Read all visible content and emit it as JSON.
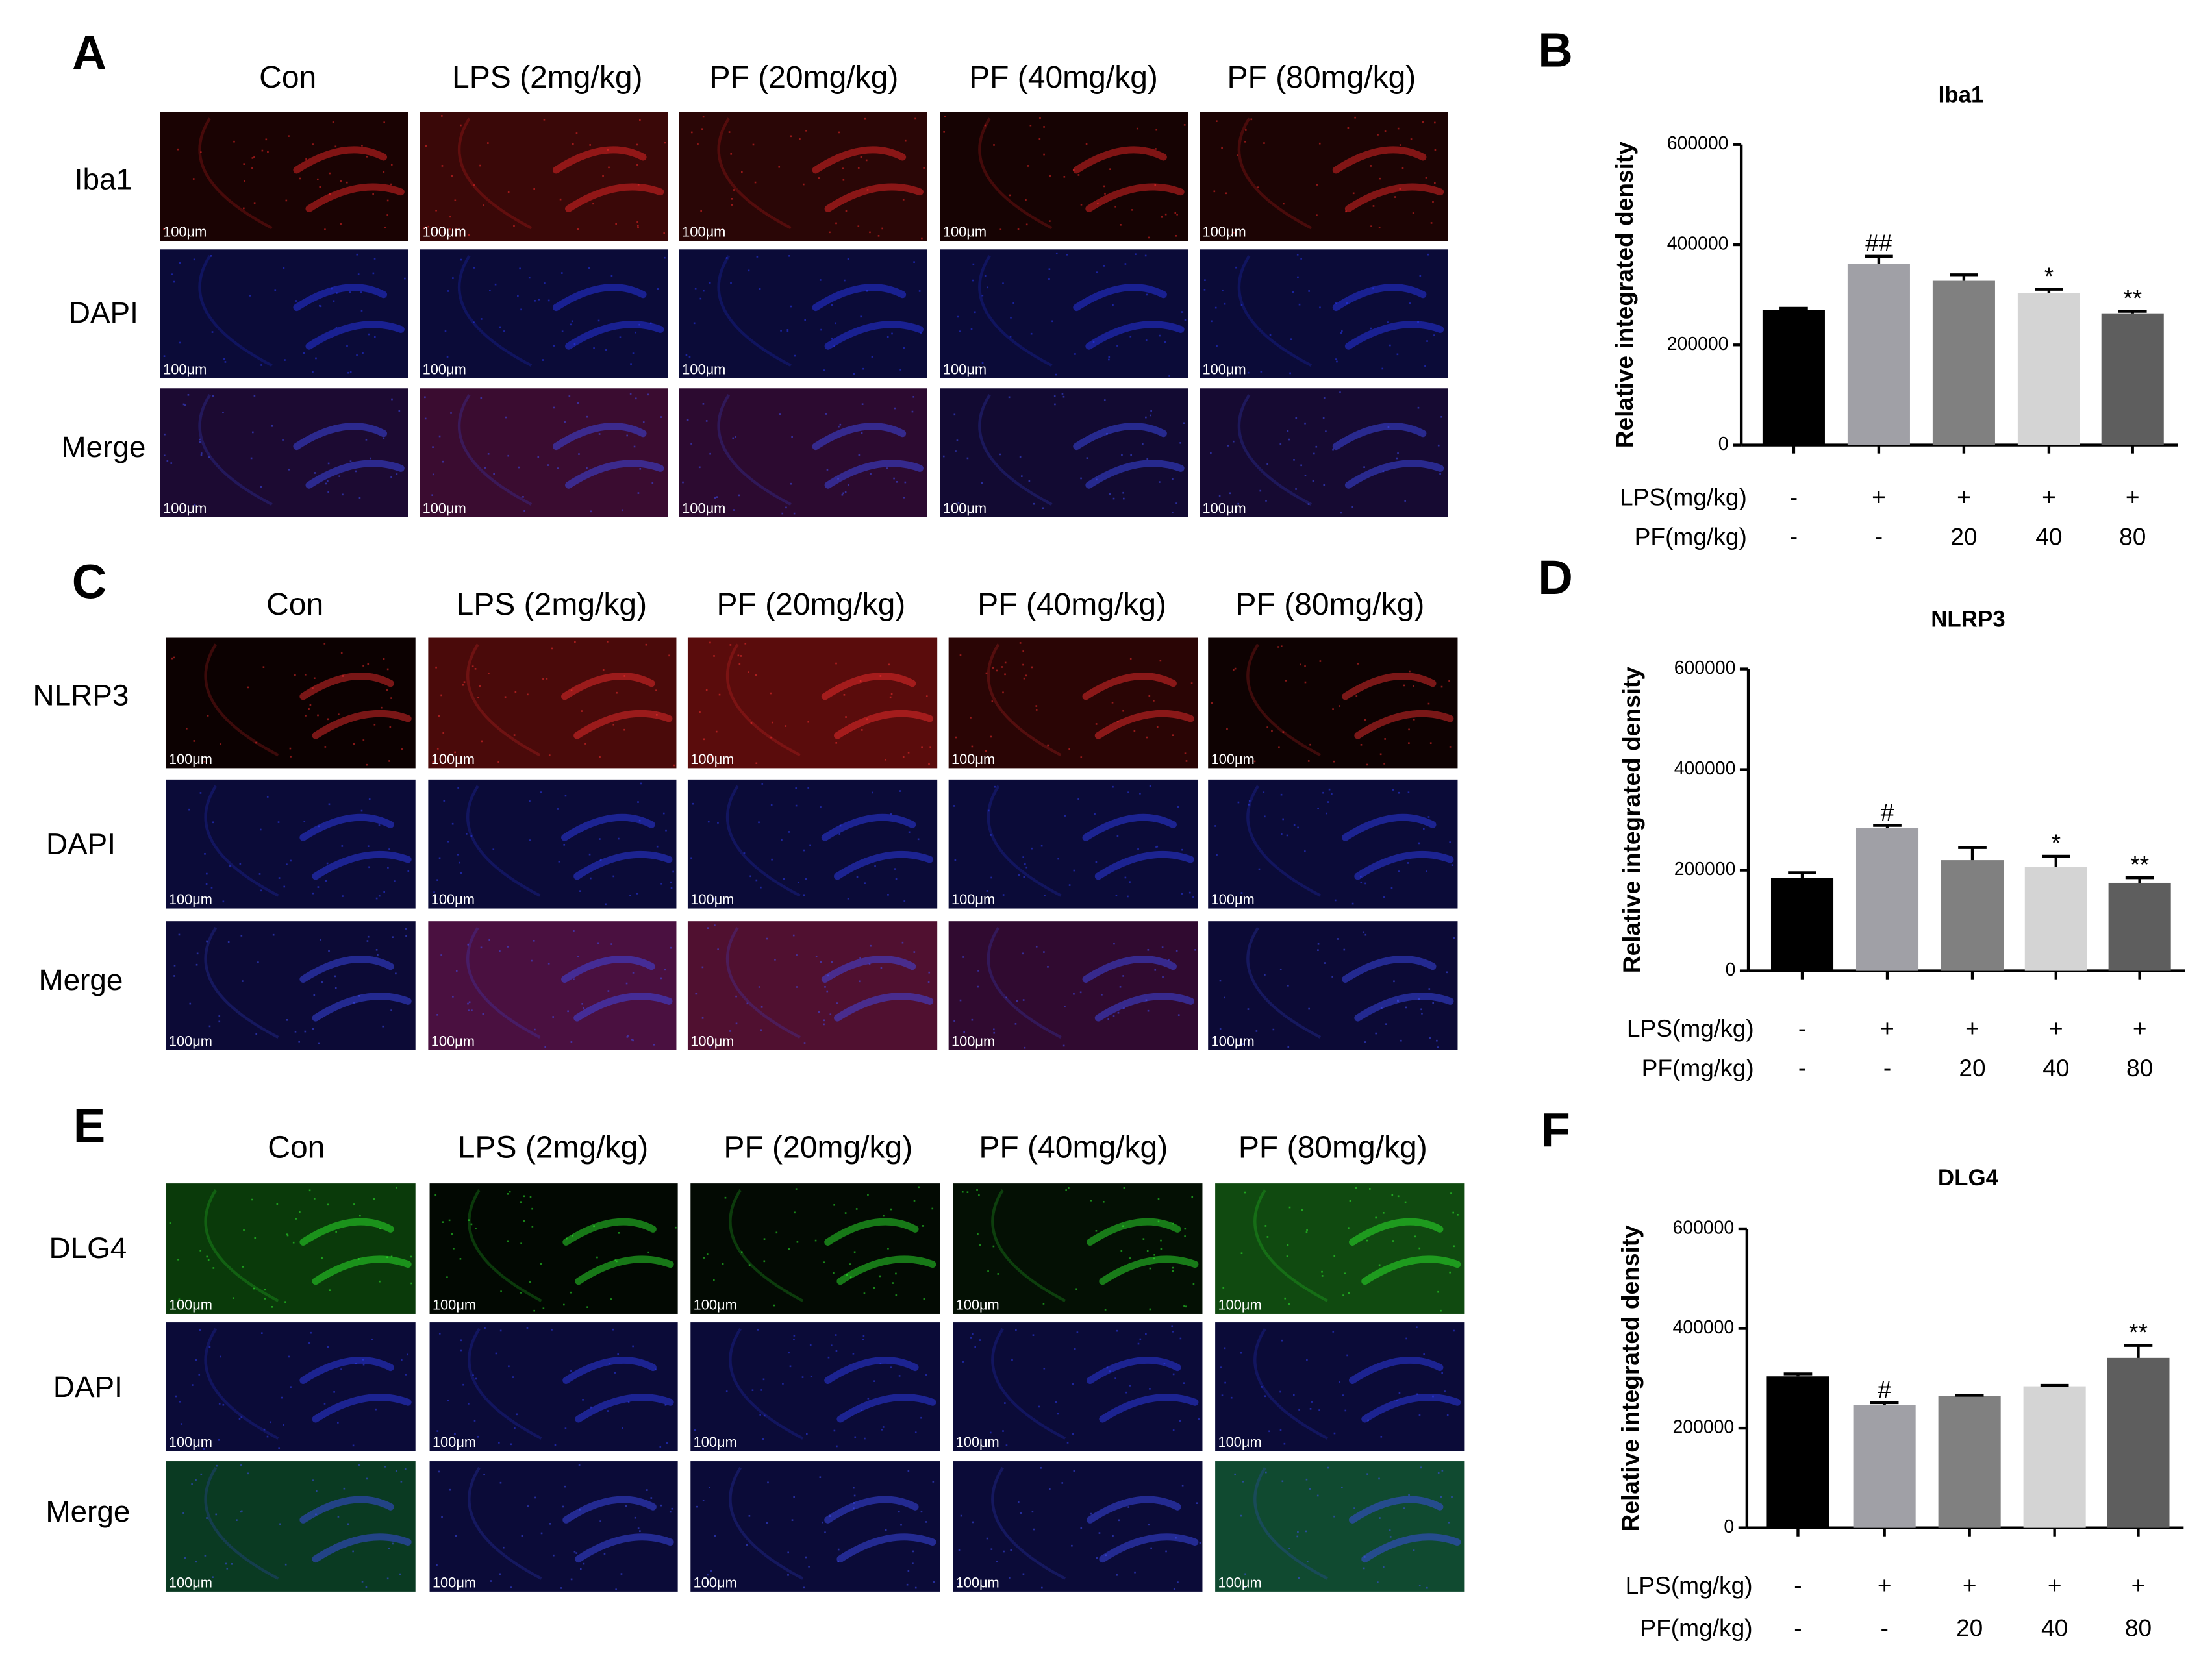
{
  "scale_bar": "100μm",
  "panels": [
    {
      "letter": "A",
      "columns": [
        "Con",
        "LPS (2mg/kg)",
        "PF (20mg/kg)",
        "PF (40mg/kg)",
        "PF (80mg/kg)"
      ],
      "rows": [
        {
          "label": "Iba1",
          "colors": [
            "#1a0303",
            "#3a0808",
            "#2a0606",
            "#160303",
            "#1c0404"
          ],
          "accent": "#ff2a2a"
        },
        {
          "label": "DAPI",
          "colors": [
            "#0b0b38",
            "#0b0b38",
            "#0b0b38",
            "#0b0b38",
            "#0b0b38"
          ],
          "accent": "#2a3aff"
        },
        {
          "label": "Merge",
          "colors": [
            "#1c0a32",
            "#3a0c30",
            "#2c0a30",
            "#120a32",
            "#160a32"
          ],
          "accent": "#4050ff"
        }
      ]
    },
    {
      "letter": "C",
      "columns": [
        "Con",
        "LPS (2mg/kg)",
        "PF (20mg/kg)",
        "PF (40mg/kg)",
        "PF (80mg/kg)"
      ],
      "rows": [
        {
          "label": "NLRP3",
          "colors": [
            "#0c0101",
            "#4a0a0a",
            "#5a0c0c",
            "#2a0505",
            "#0e0202"
          ],
          "accent": "#ff3030"
        },
        {
          "label": "DAPI",
          "colors": [
            "#0b0b38",
            "#0b0b38",
            "#0b0b38",
            "#0b0b38",
            "#0b0b38"
          ],
          "accent": "#3040ff"
        },
        {
          "label": "Merge",
          "colors": [
            "#0c0a36",
            "#4a1040",
            "#501030",
            "#300a30",
            "#0c0a36"
          ],
          "accent": "#4050ff"
        }
      ]
    },
    {
      "letter": "E",
      "columns": [
        "Con",
        "LPS (2mg/kg)",
        "PF (20mg/kg)",
        "PF (40mg/kg)",
        "PF (80mg/kg)"
      ],
      "rows": [
        {
          "label": "DLG4",
          "colors": [
            "#0a3a0a",
            "#020802",
            "#030a03",
            "#041004",
            "#104a10"
          ],
          "accent": "#30ff30"
        },
        {
          "label": "DAPI",
          "colors": [
            "#0b0b38",
            "#0b0b38",
            "#0b0b38",
            "#0b0b38",
            "#0b0b38"
          ],
          "accent": "#3040ff"
        },
        {
          "label": "Merge",
          "colors": [
            "#0a3a22",
            "#0b0b38",
            "#0b0b38",
            "#0b0b38",
            "#104a30"
          ],
          "accent": "#4050ff"
        }
      ]
    }
  ],
  "chart_data": [
    {
      "type": "bar",
      "letter": "B",
      "title": "Iba1",
      "ylabel": "Relative integrated density",
      "values": [
        270000,
        362000,
        328000,
        303000,
        263000
      ],
      "errors": [
        3000,
        15000,
        12000,
        8000,
        4000
      ],
      "colors": [
        "#000000",
        "#a0a0a6",
        "#808080",
        "#d4d4d4",
        "#5e5e5e"
      ],
      "annotations": [
        null,
        "##",
        null,
        "*",
        "**"
      ],
      "ylim": [
        0,
        600000
      ],
      "yticks": [
        0,
        200000,
        400000,
        600000
      ],
      "conditions": [
        {
          "name": "LPS(mg/kg)",
          "values": [
            "-",
            "+",
            "+",
            "+",
            "+"
          ]
        },
        {
          "name": "PF(mg/kg)",
          "values": [
            "-",
            "-",
            "20",
            "40",
            "80"
          ]
        }
      ]
    },
    {
      "type": "bar",
      "letter": "D",
      "title": "NLRP3",
      "ylabel": "Relative integrated density",
      "values": [
        185000,
        284000,
        220000,
        206000,
        175000
      ],
      "errors": [
        10000,
        5000,
        25000,
        22000,
        10000
      ],
      "colors": [
        "#000000",
        "#a0a0a6",
        "#808080",
        "#d4d4d4",
        "#5e5e5e"
      ],
      "annotations": [
        null,
        "#",
        null,
        "*",
        "**"
      ],
      "ylim": [
        0,
        600000
      ],
      "yticks": [
        0,
        200000,
        400000,
        600000
      ],
      "conditions": [
        {
          "name": "LPS(mg/kg)",
          "values": [
            "-",
            "+",
            "+",
            "+",
            "+"
          ]
        },
        {
          "name": "PF(mg/kg)",
          "values": [
            "-",
            "-",
            "20",
            "40",
            "80"
          ]
        }
      ]
    },
    {
      "type": "bar",
      "letter": "F",
      "title": "DLG4",
      "ylabel": "Relative integrated density",
      "values": [
        304000,
        247000,
        264000,
        284000,
        341000
      ],
      "errors": [
        5000,
        4000,
        2000,
        2000,
        25000
      ],
      "colors": [
        "#000000",
        "#a0a0a6",
        "#808080",
        "#d4d4d4",
        "#5e5e5e"
      ],
      "annotations": [
        null,
        "#",
        null,
        null,
        "**"
      ],
      "ylim": [
        0,
        600000
      ],
      "yticks": [
        0,
        200000,
        400000,
        600000
      ],
      "conditions": [
        {
          "name": "LPS(mg/kg)",
          "values": [
            "-",
            "+",
            "+",
            "+",
            "+"
          ]
        },
        {
          "name": "PF(mg/kg)",
          "values": [
            "-",
            "-",
            "20",
            "40",
            "80"
          ]
        }
      ]
    }
  ]
}
